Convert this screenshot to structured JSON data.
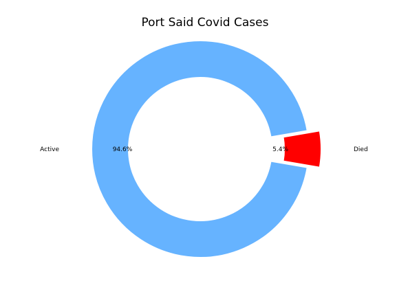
{
  "chart_data": {
    "type": "pie",
    "title": "Port Said Covid  Cases",
    "donut": true,
    "slices": [
      {
        "label": "Active",
        "value": 94.6,
        "pct_label": "94.6%",
        "color": "#66b3ff",
        "explode": false
      },
      {
        "label": "Died",
        "value": 5.4,
        "pct_label": "5.4%",
        "color": "#ff0000",
        "explode": true
      }
    ]
  }
}
